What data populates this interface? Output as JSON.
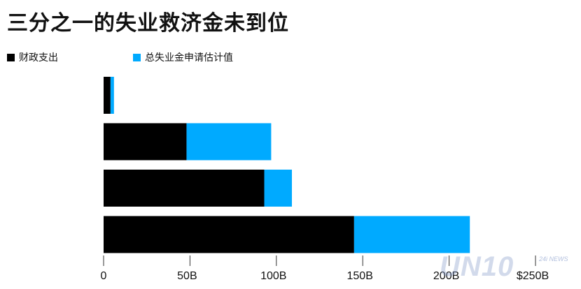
{
  "colors": {
    "fiscal": "#000000",
    "claims": "#00aaff"
  },
  "chart_data": {
    "type": "bar",
    "orientation": "horizontal",
    "stacked": true,
    "title": "三分之一的失业救济金未到位",
    "categories": [
      "",
      "",
      "",
      ""
    ],
    "series": [
      {
        "name": "财政支出",
        "values": [
          4,
          48,
          93,
          145
        ]
      },
      {
        "name": "总失业金申请估计值",
        "values": [
          2,
          49,
          16,
          67
        ]
      }
    ],
    "xlim": [
      0,
      250
    ],
    "x_ticks": [
      "0",
      "50B",
      "100B",
      "150B",
      "200B",
      "$250B"
    ],
    "grid": false,
    "legend_position": "top-left"
  },
  "watermark": {
    "text": "UN10",
    "sub": "24i NEWS"
  }
}
